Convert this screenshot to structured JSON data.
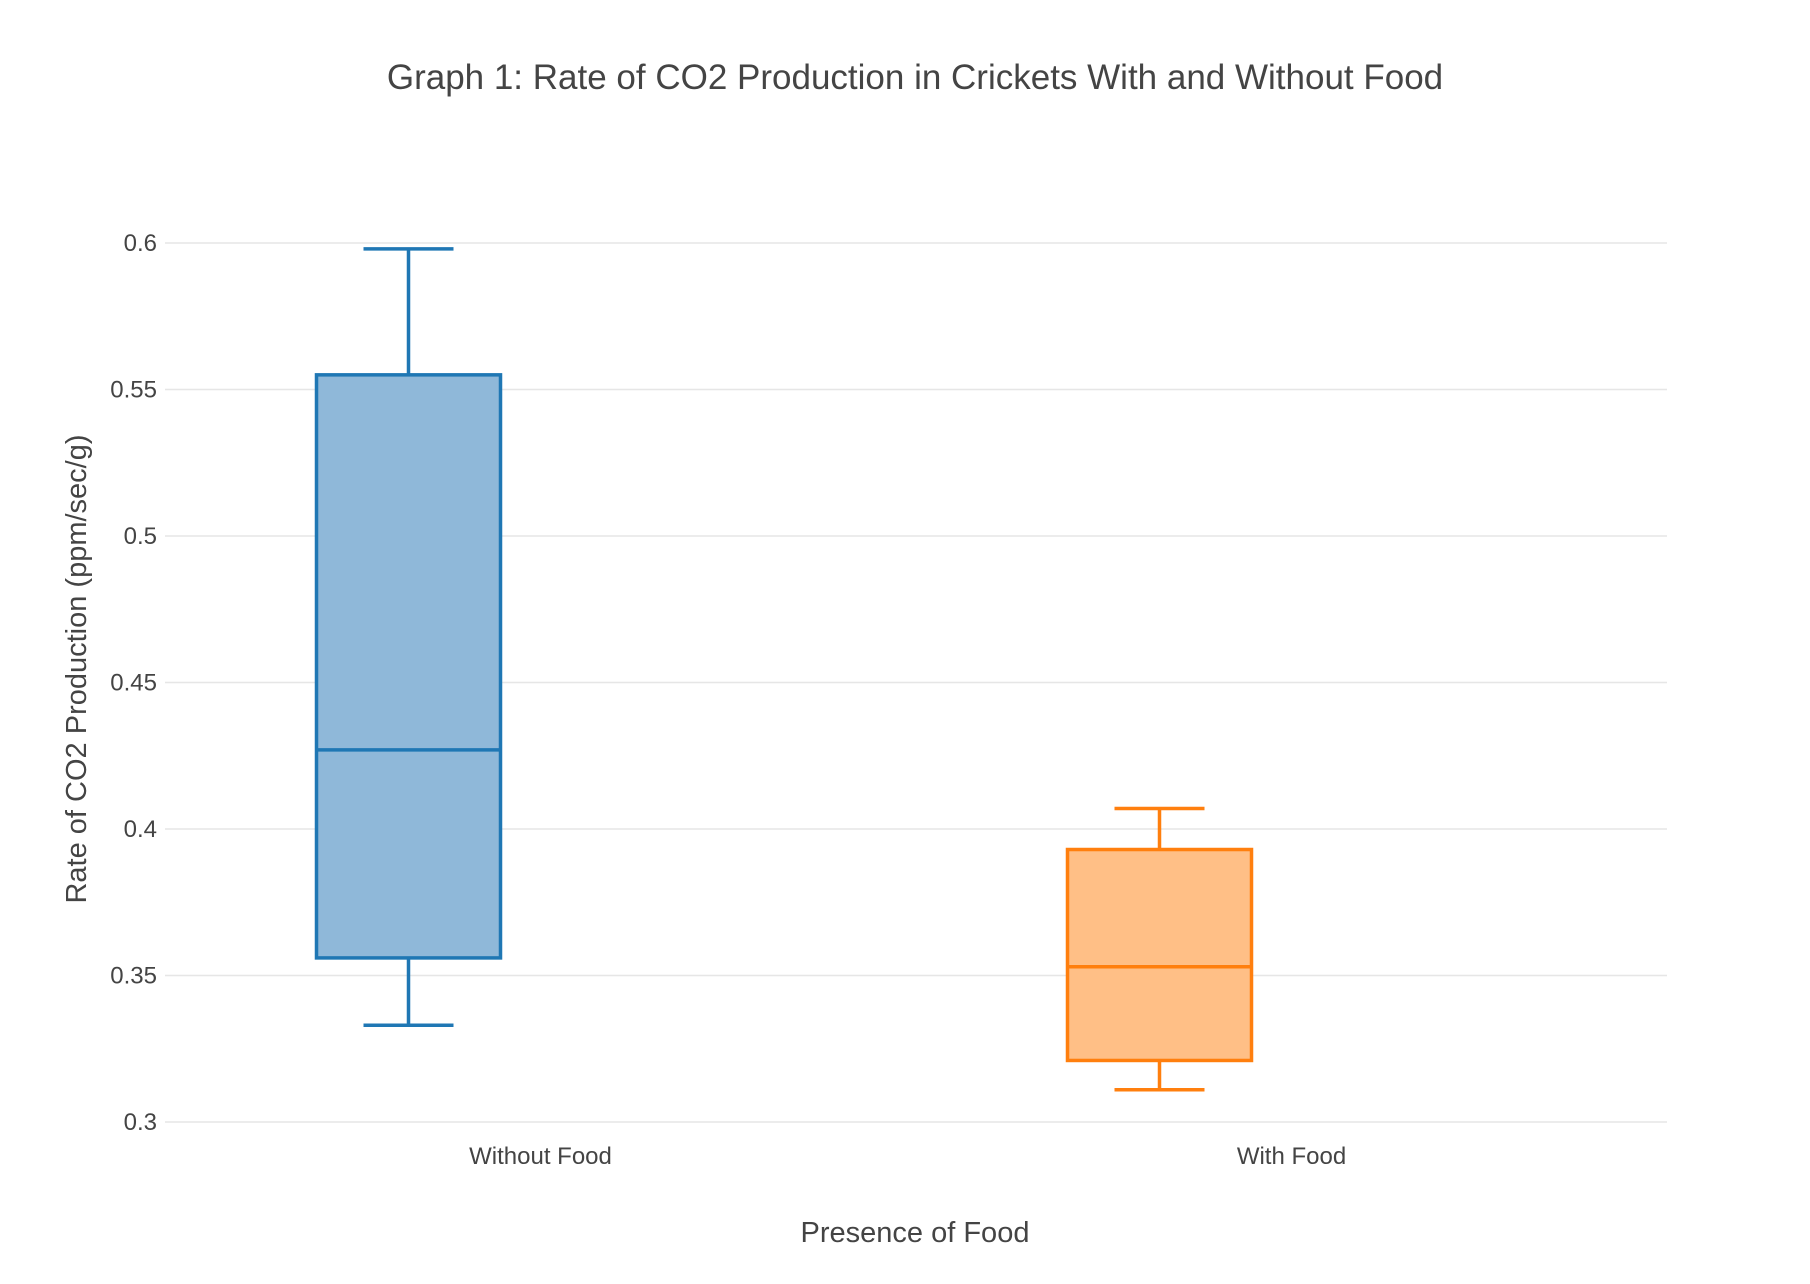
{
  "chart_data": {
    "type": "box",
    "title": "Graph 1: Rate of CO2 Production in Crickets With and Without Food",
    "xlabel": "Presence of Food",
    "ylabel": "Rate of CO2 Production (ppm/sec/g)",
    "ylim": [
      0.3,
      0.6
    ],
    "yticks": [
      "0.3",
      "0.35",
      "0.4",
      "0.45",
      "0.5",
      "0.55",
      "0.6"
    ],
    "grid": true,
    "categories": [
      "Without Food",
      "With Food"
    ],
    "boxes": [
      {
        "category": "Without Food",
        "min": 0.333,
        "q1": 0.356,
        "median": 0.427,
        "q3": 0.555,
        "max": 0.598,
        "line_color": "#1f77b4",
        "fill_color": "#8fb8d9"
      },
      {
        "category": "With Food",
        "min": 0.311,
        "q1": 0.321,
        "median": 0.353,
        "q3": 0.393,
        "max": 0.407,
        "line_color": "#ff7f0e",
        "fill_color": "#ffbf86"
      }
    ]
  }
}
